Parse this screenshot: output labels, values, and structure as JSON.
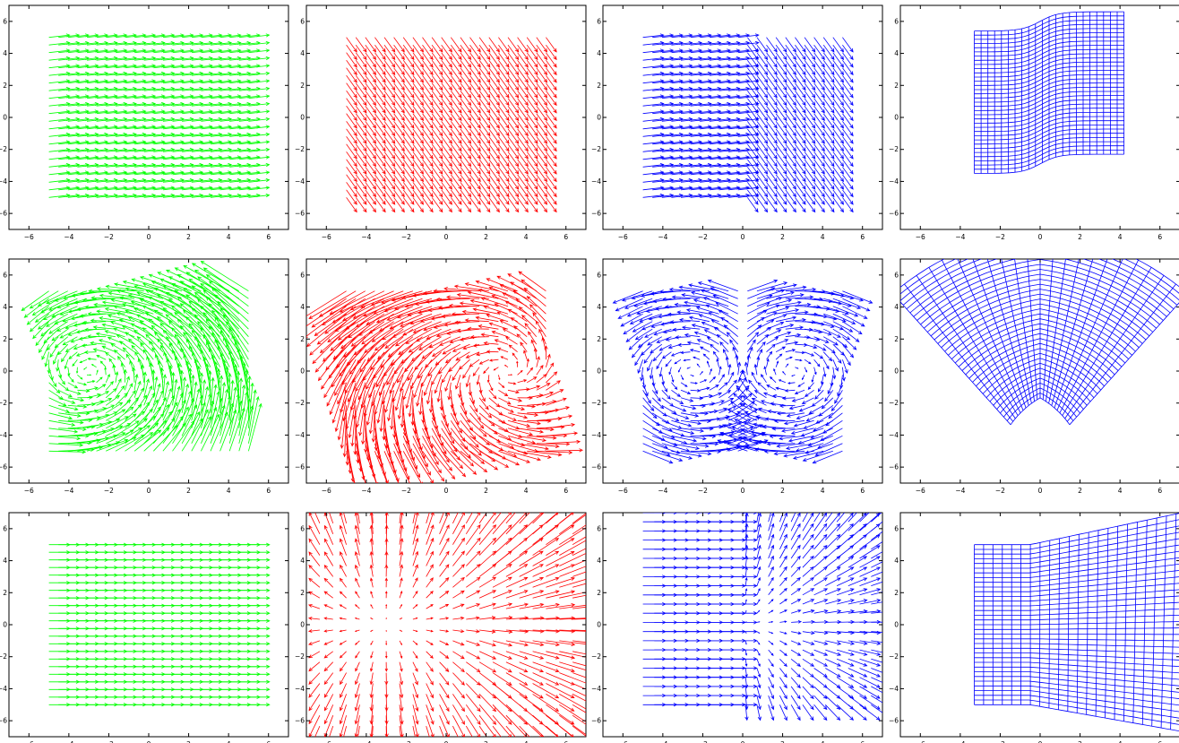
{
  "figure": {
    "rows": 3,
    "cols": 4,
    "xlim": [
      -7,
      7
    ],
    "ylim": [
      -7,
      7
    ],
    "xticks": [
      -6,
      -4,
      -2,
      0,
      2,
      4,
      6
    ],
    "yticks": [
      -6,
      -4,
      -2,
      0,
      2,
      4,
      6
    ],
    "tick_labels": [
      "−6",
      "−4",
      "−2",
      "0",
      "2",
      "4",
      "6"
    ],
    "colors": {
      "green": "#00ff00",
      "red": "#ff0000",
      "blue": "#0000ff",
      "axes": "#000000",
      "background": "#ffffff"
    }
  },
  "chart_data": [
    {
      "type": "quiver",
      "row": 1,
      "col": 1,
      "color": "#00ff00",
      "field": "uniform",
      "angle_deg": 8,
      "sampling": {
        "x": [
          -5,
          5
        ],
        "y": [
          -5,
          5
        ],
        "n": 22
      },
      "xlim": [
        -7,
        7
      ],
      "ylim": [
        -7,
        7
      ]
    },
    {
      "type": "quiver",
      "row": 1,
      "col": 2,
      "color": "#ff0000",
      "field": "uniform",
      "angle_deg": -60,
      "sampling": {
        "x": [
          -5,
          5
        ],
        "y": [
          -5,
          5
        ],
        "n": 22
      },
      "xlim": [
        -7,
        7
      ],
      "ylim": [
        -7,
        7
      ]
    },
    {
      "type": "quiver",
      "row": 1,
      "col": 3,
      "color": "#0000ff",
      "field": "piecewise",
      "left_angle_deg": 8,
      "right_angle_deg": -60,
      "sampling": {
        "x": [
          -5,
          5
        ],
        "y": [
          -5,
          5
        ],
        "n": 22
      },
      "xlim": [
        -7,
        7
      ],
      "ylim": [
        -7,
        7
      ]
    },
    {
      "type": "grid",
      "row": 1,
      "col": 4,
      "color": "#0000ff",
      "deformation": "shear",
      "x_range": [
        -3.3,
        4.2
      ],
      "y_range": [
        -3.5,
        6.6
      ],
      "xlim": [
        -7,
        7
      ],
      "ylim": [
        -7,
        7
      ]
    },
    {
      "type": "quiver",
      "row": 2,
      "col": 1,
      "color": "#00ff00",
      "field": "vortex",
      "center": [
        -3,
        0
      ],
      "angle_deg": 20,
      "sampling": {
        "x": [
          -5,
          5
        ],
        "y": [
          -5,
          5
        ],
        "n": 22
      },
      "xlim": [
        -7,
        7
      ],
      "ylim": [
        -7,
        7
      ]
    },
    {
      "type": "quiver",
      "row": 2,
      "col": 2,
      "color": "#ff0000",
      "field": "vortex",
      "center": [
        3,
        0
      ],
      "angle_deg": -20,
      "sampling": {
        "x": [
          -5,
          5
        ],
        "y": [
          -5,
          5
        ],
        "n": 22
      },
      "xlim": [
        -7,
        7
      ],
      "ylim": [
        -7,
        7
      ]
    },
    {
      "type": "quiver",
      "row": 2,
      "col": 3,
      "color": "#0000ff",
      "field": "double-vortex",
      "centers": [
        [
          -2.5,
          0
        ],
        [
          2.5,
          0
        ]
      ],
      "sampling": {
        "x": [
          -5,
          5
        ],
        "y": [
          -5,
          5
        ],
        "n": 22
      },
      "xlim": [
        -7,
        7
      ],
      "ylim": [
        -7,
        7
      ]
    },
    {
      "type": "grid",
      "row": 2,
      "col": 4,
      "color": "#0000ff",
      "deformation": "fan",
      "x_range": [
        -6.5,
        6.6
      ],
      "y_range": [
        -5.8,
        5.8
      ],
      "xlim": [
        -7,
        7
      ],
      "ylim": [
        -7,
        7
      ]
    },
    {
      "type": "quiver",
      "row": 3,
      "col": 1,
      "color": "#00ff00",
      "field": "uniform",
      "angle_deg": 0,
      "sampling": {
        "x": [
          -5,
          5
        ],
        "y": [
          -5,
          5
        ],
        "n": 22
      },
      "xlim": [
        -7,
        7
      ],
      "ylim": [
        -7,
        7
      ]
    },
    {
      "type": "quiver",
      "row": 3,
      "col": 2,
      "color": "#ff0000",
      "field": "source-sink",
      "center": [
        2,
        0
      ],
      "sampling": {
        "x": [
          -7,
          7
        ],
        "y": [
          -7,
          7
        ],
        "n": 22
      },
      "xlim": [
        -7,
        7
      ],
      "ylim": [
        -7,
        7
      ]
    },
    {
      "type": "quiver",
      "row": 3,
      "col": 3,
      "color": "#0000ff",
      "field": "piecewise-radial",
      "center": [
        2,
        0
      ],
      "sampling": {
        "x": [
          -5,
          7
        ],
        "y": [
          -5,
          7
        ],
        "n": 22
      },
      "xlim": [
        -7,
        7
      ],
      "ylim": [
        -7,
        7
      ]
    },
    {
      "type": "grid",
      "row": 3,
      "col": 4,
      "color": "#0000ff",
      "deformation": "expand",
      "x_range": [
        -3.3,
        7
      ],
      "y_range": [
        -6,
        7
      ],
      "xlim": [
        -7,
        7
      ],
      "ylim": [
        -7,
        7
      ]
    }
  ]
}
